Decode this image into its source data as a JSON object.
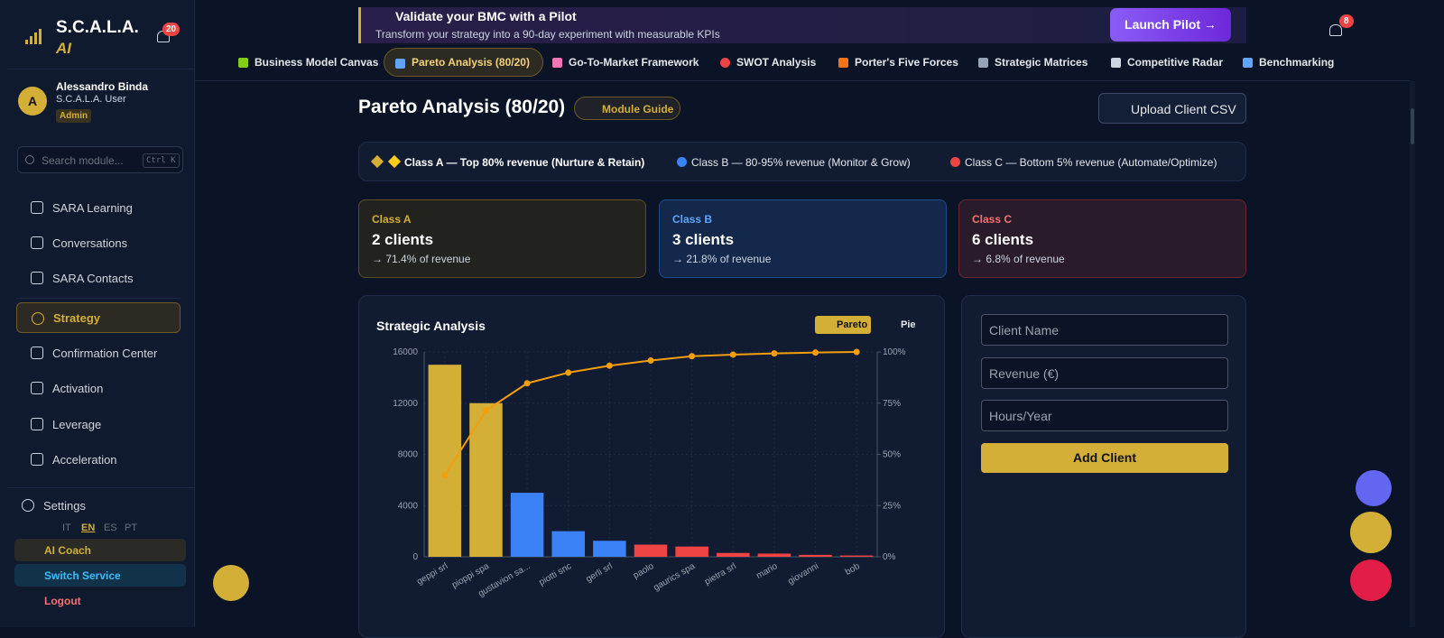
{
  "sidebar": {
    "brand": "S.C.A.L.A.",
    "brand_sub": "AI",
    "notifications": "20",
    "user": {
      "initial": "A",
      "name": "Alessandro Binda",
      "role": "S.C.A.L.A. User",
      "badge": "Admin"
    },
    "search": {
      "placeholder": "Search module...",
      "shortcut": "Ctrl K"
    },
    "nav": [
      "SARA Learning",
      "Conversations",
      "SARA Contacts",
      "Strategy",
      "Confirmation Center",
      "Activation",
      "Leverage",
      "Acceleration"
    ],
    "settings": "Settings",
    "languages": [
      "IT",
      "EN",
      "ES",
      "PT"
    ],
    "footer": [
      "AI Coach",
      "Switch Service",
      "Logout"
    ]
  },
  "banner": {
    "title": "Validate your BMC with a Pilot",
    "subtitle": "Transform your strategy into a 90-day experiment with measurable KPIs",
    "button": "Launch Pilot →"
  },
  "top_notifications": "8",
  "tabs": [
    "Business Model Canvas",
    "Pareto Analysis (80/20)",
    "Go-To-Market Framework",
    "SWOT Analysis",
    "Porter's Five Forces",
    "Strategic Matrices",
    "Competitive Radar",
    "Benchmarking"
  ],
  "header": {
    "title": "Pareto Analysis (80/20)",
    "guide": "Module Guide",
    "upload": "Upload Client CSV"
  },
  "legend": [
    "Class A — Top 80% revenue (Nurture & Retain)",
    "Class B — 80-95% revenue (Monitor & Grow)",
    "Class C — Bottom 5% revenue (Automate/Optimize)"
  ],
  "cards": [
    {
      "label": "Class A",
      "count": "2 clients",
      "share": "→ 71.4% of revenue"
    },
    {
      "label": "Class B",
      "count": "3 clients",
      "share": "→ 21.8% of revenue"
    },
    {
      "label": "Class C",
      "count": "6 clients",
      "share": "→ 6.8% of revenue"
    }
  ],
  "chart_data": {
    "type": "pareto",
    "title": "Strategic Analysis",
    "toggles": [
      "Pareto",
      "Pie"
    ],
    "categories": [
      "geppi srl",
      "pioppi spa",
      "gustavion sa...",
      "piotti snc",
      "gerli srl",
      "paolo",
      "gaurics spa",
      "pietra srl",
      "mario",
      "giovanni",
      "bob"
    ],
    "series": [
      {
        "type": "bar",
        "colors": [
          "#d4af37",
          "#d4af37",
          "#3b82f6",
          "#3b82f6",
          "#3b82f6",
          "#ef4444",
          "#ef4444",
          "#ef4444",
          "#ef4444",
          "#ef4444",
          "#ef4444"
        ],
        "values": [
          15000,
          12000,
          5000,
          2000,
          1250,
          950,
          800,
          300,
          250,
          150,
          100
        ]
      },
      {
        "type": "line",
        "axis": "y2",
        "color": "#f59e0b",
        "values": [
          39.7,
          71.4,
          84.7,
          89.9,
          93.3,
          95.8,
          97.9,
          98.7,
          99.3,
          99.7,
          100
        ]
      }
    ],
    "ylim": [
      0,
      16000
    ],
    "yticks": [
      0,
      4000,
      8000,
      12000,
      16000
    ],
    "y2lim": [
      0,
      100
    ],
    "y2ticks": [
      {
        "value": 0,
        "label": "0%"
      },
      {
        "value": 25,
        "label": "25%"
      },
      {
        "value": 50,
        "label": "50%"
      },
      {
        "value": 75,
        "label": "75%"
      },
      {
        "value": 100,
        "label": "100%"
      }
    ],
    "grid": true
  },
  "form": {
    "fields": [
      "Client Name",
      "Revenue (€)",
      "Hours/Year"
    ],
    "button": "Add Client"
  }
}
